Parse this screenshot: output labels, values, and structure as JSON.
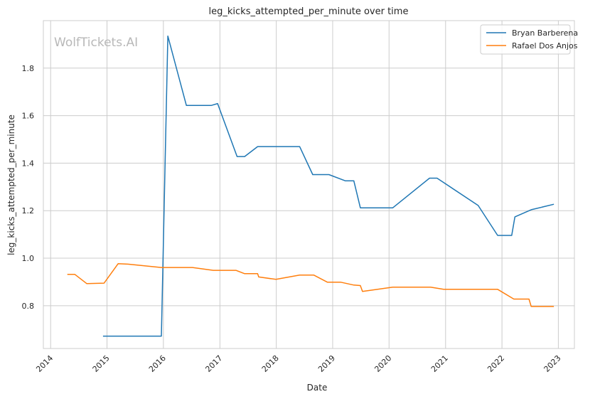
{
  "chart_data": {
    "type": "line",
    "title": "leg_kicks_attempted_per_minute over time",
    "xlabel": "Date",
    "ylabel": "leg_kicks_attempted_per_minute",
    "watermark": "WolfTickets.AI",
    "grid": true,
    "legend_position": "top-right",
    "x_ticks": [
      "2014",
      "2015",
      "2016",
      "2017",
      "2018",
      "2019",
      "2020",
      "2021",
      "2022",
      "2023"
    ],
    "y_ticks": [
      "0.8",
      "1.0",
      "1.2",
      "1.4",
      "1.6",
      "1.8"
    ],
    "xlim": [
      "2013-11-15",
      "2023-04-15"
    ],
    "ylim": [
      0.62,
      2.0
    ],
    "series": [
      {
        "name": "Bryan Barberena",
        "color": "#1f77b4",
        "points": [
          [
            "2014-12-06",
            0.672
          ],
          [
            "2015-12-19",
            0.672
          ],
          [
            "2016-01-30",
            1.935
          ],
          [
            "2016-05-29",
            1.643
          ],
          [
            "2016-11-05",
            1.643
          ],
          [
            "2016-12-17",
            1.651
          ],
          [
            "2017-04-22",
            1.428
          ],
          [
            "2017-06-10",
            1.428
          ],
          [
            "2017-09-02",
            1.47
          ],
          [
            "2018-06-01",
            1.47
          ],
          [
            "2018-08-25",
            1.352
          ],
          [
            "2018-12-08",
            1.352
          ],
          [
            "2019-03-23",
            1.326
          ],
          [
            "2019-05-18",
            1.326
          ],
          [
            "2019-06-29",
            1.212
          ],
          [
            "2020-01-25",
            1.212
          ],
          [
            "2020-09-19",
            1.337
          ],
          [
            "2020-11-07",
            1.337
          ],
          [
            "2021-07-31",
            1.222
          ],
          [
            "2021-12-04",
            1.096
          ],
          [
            "2022-03-05",
            1.096
          ],
          [
            "2022-03-26",
            1.174
          ],
          [
            "2022-07-09",
            1.204
          ],
          [
            "2022-12-03",
            1.227
          ]
        ]
      },
      {
        "name": "Rafael Dos Anjos",
        "color": "#ff7f0e",
        "points": [
          [
            "2014-04-19",
            0.932
          ],
          [
            "2014-06-07",
            0.932
          ],
          [
            "2014-08-23",
            0.893
          ],
          [
            "2014-12-13",
            0.895
          ],
          [
            "2015-03-14",
            0.977
          ],
          [
            "2015-05-16",
            0.975
          ],
          [
            "2015-12-19",
            0.961
          ],
          [
            "2016-07-07",
            0.961
          ],
          [
            "2016-11-19",
            0.949
          ],
          [
            "2017-04-15",
            0.949
          ],
          [
            "2017-06-10",
            0.935
          ],
          [
            "2017-09-02",
            0.935
          ],
          [
            "2017-09-09",
            0.921
          ],
          [
            "2017-12-30",
            0.911
          ],
          [
            "2018-06-01",
            0.929
          ],
          [
            "2018-09-01",
            0.929
          ],
          [
            "2018-11-28",
            0.899
          ],
          [
            "2019-02-23",
            0.899
          ],
          [
            "2019-05-18",
            0.887
          ],
          [
            "2019-06-29",
            0.885
          ],
          [
            "2019-07-13",
            0.86
          ],
          [
            "2020-01-25",
            0.878
          ],
          [
            "2020-09-26",
            0.878
          ],
          [
            "2020-12-19",
            0.869
          ],
          [
            "2021-12-04",
            0.869
          ],
          [
            "2022-03-19",
            0.828
          ],
          [
            "2022-06-25",
            0.828
          ],
          [
            "2022-07-09",
            0.797
          ],
          [
            "2022-12-03",
            0.797
          ]
        ]
      }
    ]
  }
}
